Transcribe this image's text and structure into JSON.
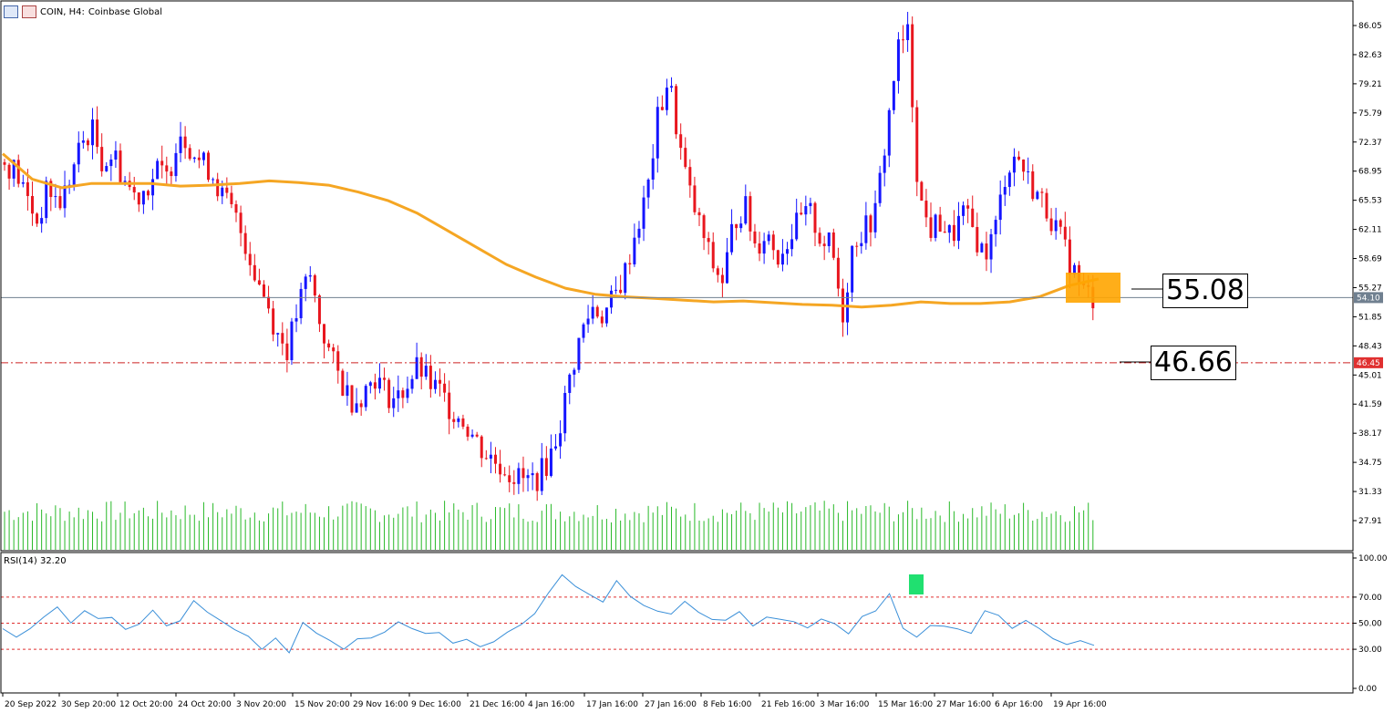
{
  "header": {
    "symbol_label": "COIN, H4:",
    "instrument": "Coinbase Global"
  },
  "rsi_label": "RSI(14) 32.20",
  "callouts": {
    "upper": "55.08",
    "lower": "46.66"
  },
  "price_tags": {
    "current": "54.10",
    "level": "46.45"
  },
  "colors": {
    "bull": "#1515ff",
    "bear": "#e8161e",
    "ma": "#f5a623",
    "volume": "#28b928",
    "rsi": "#3a8fd8",
    "rsi_level": "#e03030",
    "level_line": "#cc2222",
    "zone": "#ffa500",
    "rsi_marker": "#20e070"
  },
  "chart_data": {
    "type": "candlestick",
    "title": "COIN, H4: Coinbase Global",
    "y_ticks": [
      "86.05",
      "82.63",
      "79.21",
      "75.79",
      "72.37",
      "68.95",
      "65.53",
      "62.11",
      "58.69",
      "55.27",
      "51.85",
      "48.43",
      "45.01",
      "41.59",
      "38.17",
      "34.75",
      "31.33",
      "27.91"
    ],
    "x_ticks": [
      "20 Sep 2022",
      "30 Sep 20:00",
      "12 Oct 20:00",
      "24 Oct 20:00",
      "3 Nov 20:00",
      "15 Nov 20:00",
      "29 Nov 16:00",
      "9 Dec 16:00",
      "21 Dec 16:00",
      "4 Jan 16:00",
      "17 Jan 16:00",
      "27 Jan 16:00",
      "8 Feb 16:00",
      "21 Feb 16:00",
      "3 Mar 16:00",
      "15 Mar 16:00",
      "27 Mar 16:00",
      "6 Apr 16:00",
      "19 Apr 16:00"
    ],
    "close_path": [
      70,
      69,
      66,
      63,
      67,
      65,
      68,
      72,
      74,
      70,
      71,
      68,
      66,
      67,
      69,
      68,
      74,
      72,
      70,
      69,
      66,
      64,
      61,
      57,
      54,
      50,
      48,
      53,
      57,
      51,
      47,
      44,
      42,
      43,
      45,
      43,
      42,
      44,
      46,
      44,
      43,
      41,
      40,
      38,
      36,
      35,
      34,
      33,
      32.5,
      33,
      35,
      39,
      45,
      50,
      53,
      52,
      54,
      57,
      62,
      66,
      75,
      80,
      72,
      66,
      62,
      58,
      56,
      63,
      65,
      60,
      62,
      59,
      61,
      63,
      64,
      61,
      60,
      52,
      61,
      62,
      64,
      73,
      83,
      85,
      66,
      62,
      63,
      61,
      64,
      62,
      59,
      62,
      69,
      71,
      68,
      66,
      64,
      61,
      58,
      55,
      54.1
    ],
    "ma_path": [
      71,
      68,
      67,
      67.5,
      67.5,
      67.5,
      67.2,
      67.3,
      67.5,
      67.8,
      67.6,
      67.3,
      66.5,
      65.5,
      64,
      62,
      60,
      58,
      56.5,
      55.2,
      54.5,
      54.2,
      54,
      53.8,
      53.6,
      53.7,
      53.5,
      53.3,
      53.2,
      53,
      53.2,
      53.6,
      53.4,
      53.4,
      53.6,
      54.2,
      55.5,
      56.3
    ],
    "level_line": 46.45,
    "current_price": 54.1,
    "rsi": {
      "name": "RSI(14)",
      "y_ticks": [
        "100.00",
        "70.00",
        "50.00",
        "30.00",
        "0.00"
      ],
      "levels": [
        70,
        50,
        30
      ],
      "last": 32.2,
      "values": [
        48,
        40,
        44,
        56,
        60,
        52,
        57,
        52,
        55,
        45,
        50,
        58,
        48,
        54,
        65,
        60,
        52,
        48,
        42,
        28,
        38,
        26,
        50,
        45,
        38,
        32,
        36,
        40,
        46,
        52,
        48,
        42,
        40,
        36,
        40,
        34,
        38,
        45,
        50,
        60,
        75,
        85,
        78,
        72,
        68,
        80,
        70,
        62,
        58,
        55,
        64,
        60,
        52,
        54,
        56,
        48,
        52,
        54,
        50,
        46,
        52,
        48,
        42,
        55,
        62,
        75,
        48,
        42,
        46,
        50,
        48,
        44,
        58,
        55,
        46,
        52,
        48,
        40,
        32,
        34,
        32
      ]
    }
  }
}
